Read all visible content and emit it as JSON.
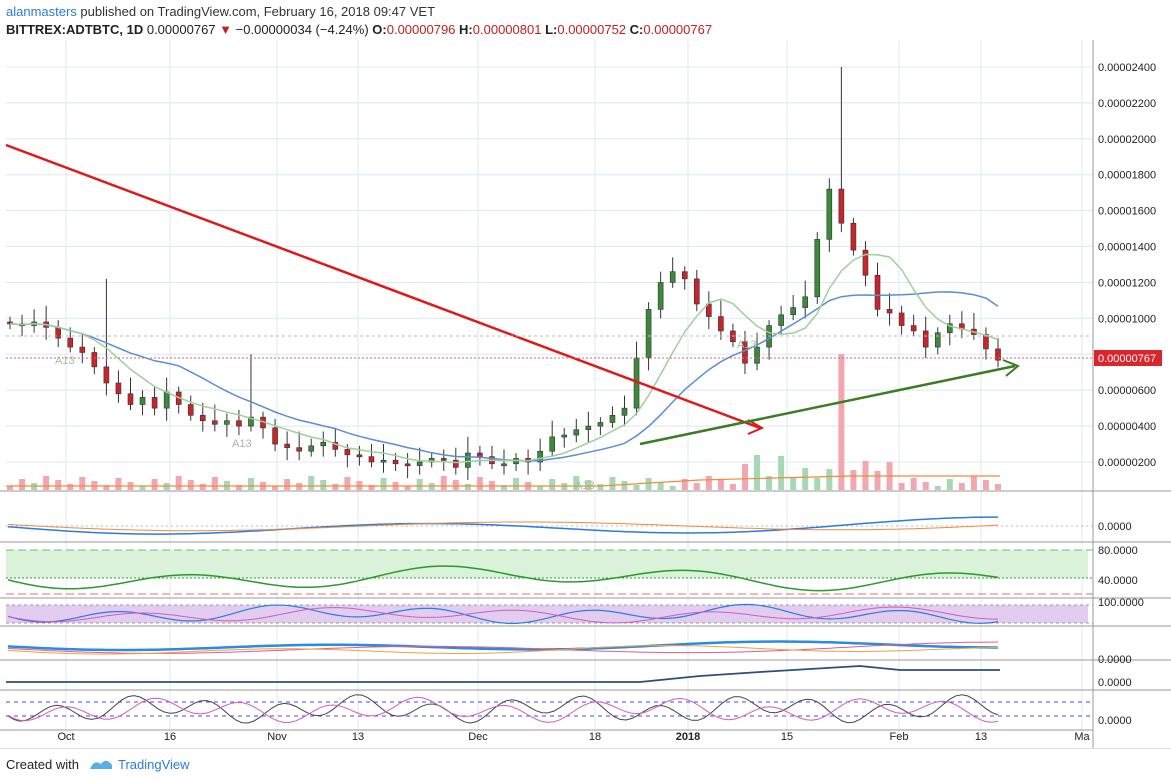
{
  "header": {
    "author": "alanmasters",
    "published": " published on TradingView.com, February 16, 2018 09:47 VET",
    "symbol": "BITTREX:ADTBTC, 1D",
    "price": "0.00000767",
    "change": "−0.00000034 (−4.24%)",
    "o_label": "O:",
    "o_value": "0.00000796",
    "h_label": "H:",
    "h_value": "0.00000801",
    "l_label": "L:",
    "l_value": "0.00000752",
    "c_label": "C:",
    "c_value": "0.00000767"
  },
  "footer": {
    "created": "Created with",
    "brand": "TradingView"
  },
  "colors": {
    "up": "#3a8a3a",
    "down": "#c8242c",
    "grid": "#dde8f4",
    "trend_red": "#e01818",
    "trend_green": "#3b7d23",
    "ma_blue": "#5b8ed3",
    "ma_green": "#9fd09a"
  },
  "chart_data": {
    "type": "candlestick",
    "y_axis_ticks": [
      "0.00002400",
      "0.00002200",
      "0.00002000",
      "0.00001800",
      "0.00001600",
      "0.00001400",
      "0.00001200",
      "0.00001000",
      "0.00000800",
      "0.00000600",
      "0.00000400",
      "0.00000200"
    ],
    "last_price_label": "0.00000767",
    "x_axis_ticks": [
      "Oct",
      "16",
      "Nov",
      "13",
      "Dec",
      "18",
      "2018",
      "15",
      "Feb",
      "13",
      "Ma"
    ],
    "annotations": [
      "A13",
      "A13",
      "A13",
      "A13"
    ],
    "indicator_labels": {
      "macd": "0.0000",
      "rsi_top": "80.0000",
      "rsi_bottom": "40.0000",
      "pane4": "100.0000",
      "pane5": "0.0000",
      "pane6": "0.0000",
      "pane7": "0.0000"
    },
    "close_series": [
      9.7,
      9.6,
      9.8,
      9.5,
      8.9,
      8.4,
      8.1,
      7.3,
      6.4,
      5.8,
      5.2,
      5.6,
      5.0,
      5.9,
      5.2,
      4.6,
      4.3,
      4.1,
      4.3,
      4.0,
      4.5,
      3.9,
      3.0,
      2.8,
      2.6,
      2.9,
      3.1,
      2.7,
      2.4,
      2.3,
      2.0,
      2.1,
      1.9,
      1.8,
      2.0,
      2.2,
      2.1,
      1.7,
      2.5,
      2.3,
      1.9,
      1.9,
      2.2,
      2.0,
      2.6,
      3.4,
      3.5,
      3.8,
      4.0,
      4.2,
      4.6,
      5.0,
      7.8,
      10.5,
      12.0,
      12.6,
      12.2,
      10.8,
      10.1,
      9.3,
      8.7,
      7.5,
      8.4,
      9.6,
      10.2,
      10.6,
      11.2,
      14.4,
      17.2,
      15.3,
      13.8,
      12.4,
      10.5,
      10.3,
      9.6,
      9.3,
      8.4,
      9.2,
      9.7,
      9.4,
      9.1,
      8.3,
      7.67
    ],
    "volume_note": "volume bars at bottom of price pane"
  }
}
